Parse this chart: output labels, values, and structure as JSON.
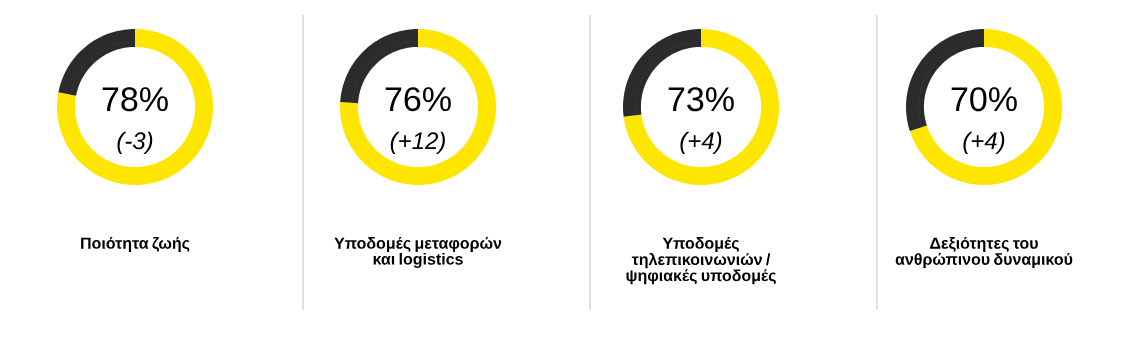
{
  "chart_data": [
    {
      "type": "donut",
      "title": "Ποιότητα ζωής",
      "categories": [
        null,
        null
      ],
      "values": [
        78,
        22
      ],
      "colors": [
        "#ffe600",
        "#2b2b2b"
      ],
      "value_labels": [
        "78%",
        null
      ],
      "annotations": [
        "(-3)"
      ]
    },
    {
      "type": "donut",
      "title": "Υποδομές μεταφορών και logistics",
      "categories": [
        null,
        null
      ],
      "values": [
        76,
        24
      ],
      "colors": [
        "#ffe600",
        "#2b2b2b"
      ],
      "value_labels": [
        "76%",
        null
      ],
      "annotations": [
        "(+12)"
      ]
    },
    {
      "type": "donut",
      "title": "Υποδομές τηλεπικοινωνιών / ψηφιακές υποδομές",
      "categories": [
        null,
        null
      ],
      "values": [
        73,
        27
      ],
      "colors": [
        "#ffe600",
        "#2b2b2b"
      ],
      "value_labels": [
        "73%",
        null
      ],
      "annotations": [
        "(+4)"
      ]
    },
    {
      "type": "donut",
      "title": "Δεξιότητες του ανθρώπινου δυναμικού",
      "categories": [
        null,
        null
      ],
      "values": [
        70,
        30
      ],
      "colors": [
        "#ffe600",
        "#2b2b2b"
      ],
      "value_labels": [
        "70%",
        null
      ],
      "annotations": [
        "(+4)"
      ]
    }
  ]
}
